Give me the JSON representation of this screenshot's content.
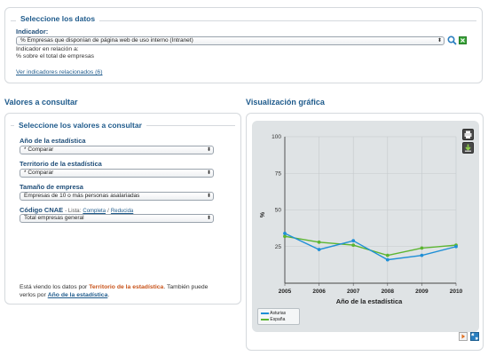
{
  "top_panel": {
    "legend": "Seleccione los datos",
    "indicator_label": "Indicador:",
    "indicator_value": "% Empresas que disponían de página web de uso interno (Intranet)",
    "relation_label": "Indicador en relación a:",
    "relation_value": "% sobre el total de empresas",
    "related_link": "Ver indicadores relacionados (6)",
    "search_icon": "search-icon",
    "excel_icon": "excel-icon"
  },
  "values_section": {
    "heading": "Valores a consultar",
    "legend": "Seleccione los valores a consultar",
    "fields": [
      {
        "label": "Año de la estadística",
        "value": "* Comparar"
      },
      {
        "label": "Territorio de la estadística",
        "value": "* Comparar"
      },
      {
        "label": "Tamaño de empresa",
        "value": "Empresas de 10 o más personas asalariadas"
      },
      {
        "label": "Código CNAE",
        "value": "Total empresas general"
      }
    ],
    "cnae_list_label": "- Lista:",
    "cnae_complete": "Completa",
    "cnae_sep": "/",
    "cnae_reduced": "Reducida",
    "footer_part1": "Está viendo los datos por",
    "footer_highlight": "Territorio de la estadística",
    "footer_part2": ". También puede",
    "footer_part3": "verlos por",
    "footer_link": "Año de la estadística",
    "footer_end": "."
  },
  "chart_section": {
    "heading": "Visualización gráfica",
    "print_icon": "print-icon",
    "download_icon": "download-icon",
    "play_icon": "play-icon",
    "expand_icon": "expand-icon"
  },
  "chart_data": {
    "type": "line",
    "xlabel": "Año de la estadística",
    "ylabel": "%",
    "x": [
      2005,
      2006,
      2007,
      2008,
      2009,
      2010
    ],
    "yticks": [
      25,
      50,
      75,
      100
    ],
    "ylim": [
      0,
      100
    ],
    "grid": true,
    "legend_position": "bottom-left",
    "series": [
      {
        "name": "Asturias",
        "color": "#1f8fd6",
        "values": [
          34,
          23,
          29,
          16,
          19,
          25
        ]
      },
      {
        "name": "España",
        "color": "#5cb531",
        "values": [
          32,
          28,
          26,
          19,
          24,
          26
        ]
      }
    ]
  }
}
